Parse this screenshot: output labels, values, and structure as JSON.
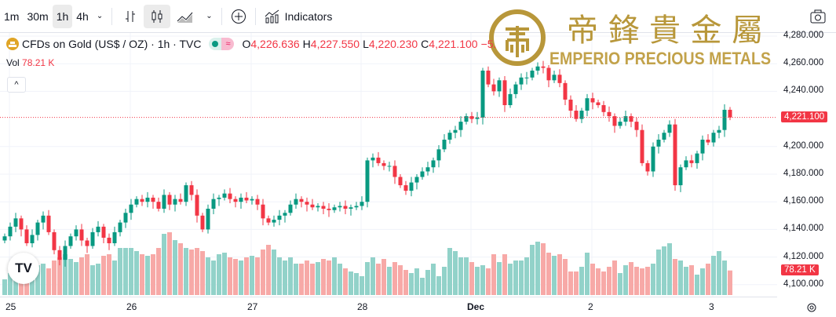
{
  "toolbar": {
    "intervals": [
      "1m",
      "30m",
      "1h",
      "4h"
    ],
    "active_interval": "1h",
    "indicators_label": "Indicators"
  },
  "legend": {
    "symbol": "CFDs on Gold (US$ / OZ) · 1h · TVC",
    "open_label": "O",
    "open": "4,226.636",
    "high_label": "H",
    "high": "4,227.550",
    "low_label": "L",
    "low": "4,220.230",
    "close_label": "C",
    "close": "4,221.100",
    "change": "−5.",
    "vol_label": "Vol",
    "vol": "78.21 K"
  },
  "logo": {
    "chinese": "帝鋒貴金屬",
    "english": "EMPERIO PRECIOUS METALS"
  },
  "colors": {
    "up": "#089981",
    "down": "#f23645",
    "vol_up": "#92d2c9",
    "vol_down": "#f7a9a7",
    "gold": "#b8973a"
  },
  "chart_data": {
    "type": "candlestick",
    "title": "CFDs on Gold (US$ / OZ) · 1h · TVC",
    "ylim": [
      4096,
      4287
    ],
    "y_ticks": [
      "4,280.000",
      "4,260.000",
      "4,240.000",
      "4,200.000",
      "4,180.000",
      "4,160.000",
      "4,140.000",
      "4,120.000",
      "4,100.000"
    ],
    "y_tick_values": [
      4280,
      4260,
      4240,
      4200,
      4180,
      4160,
      4140,
      4120,
      4100
    ],
    "x_ticks": [
      {
        "label": "25",
        "index": 1
      },
      {
        "label": "26",
        "index": 23
      },
      {
        "label": "27",
        "index": 45
      },
      {
        "label": "28",
        "index": 65
      },
      {
        "label": "Dec",
        "index": 85
      },
      {
        "label": "2",
        "index": 107
      },
      {
        "label": "3",
        "index": 129
      }
    ],
    "last_price": "4,221.100",
    "last_price_value": 4221.1,
    "last_volume": "78.21 K",
    "last_volume_value": 78.21,
    "first_open": 4132,
    "closes": [
      4135,
      4142,
      4148,
      4140,
      4130,
      4136,
      4145,
      4150,
      4138,
      4125,
      4118,
      4128,
      4135,
      4140,
      4132,
      4128,
      4138,
      4142,
      4134,
      4130,
      4138,
      4145,
      4152,
      4158,
      4162,
      4160,
      4163,
      4160,
      4155,
      4165,
      4158,
      4162,
      4160,
      4172,
      4165,
      4150,
      4140,
      4155,
      4162,
      4163,
      4166,
      4162,
      4160,
      4163,
      4161,
      4162,
      4158,
      4148,
      4145,
      4147,
      4150,
      4152,
      4158,
      4162,
      4160,
      4158,
      4156,
      4157,
      4155,
      4154,
      4156,
      4157,
      4155,
      4156,
      4157,
      4160,
      4190,
      4192,
      4188,
      4186,
      4186,
      4178,
      4172,
      4168,
      4174,
      4178,
      4182,
      4185,
      4190,
      4198,
      4205,
      4210,
      4212,
      4218,
      4222,
      4220,
      4221,
      4255,
      4245,
      4240,
      4248,
      4230,
      4238,
      4245,
      4250,
      4250,
      4255,
      4258,
      4257,
      4248,
      4252,
      4246,
      4234,
      4226,
      4220,
      4226,
      4235,
      4232,
      4230,
      4225,
      4222,
      4215,
      4218,
      4222,
      4218,
      4212,
      4188,
      4182,
      4200,
      4205,
      4210,
      4216,
      4172,
      4185,
      4190,
      4188,
      4195,
      4205,
      4203,
      4210,
      4212,
      4226.636,
      4221.1
    ],
    "volumes_k": [
      50,
      70,
      90,
      80,
      110,
      60,
      95,
      100,
      85,
      110,
      120,
      130,
      115,
      105,
      120,
      130,
      95,
      100,
      125,
      130,
      110,
      150,
      150,
      150,
      140,
      130,
      125,
      130,
      150,
      195,
      200,
      175,
      165,
      150,
      145,
      150,
      140,
      120,
      110,
      130,
      135,
      120,
      115,
      110,
      120,
      125,
      120,
      145,
      160,
      145,
      120,
      110,
      120,
      100,
      100,
      110,
      100,
      105,
      115,
      110,
      120,
      100,
      85,
      75,
      70,
      60,
      105,
      120,
      100,
      115,
      90,
      105,
      95,
      80,
      70,
      85,
      55,
      80,
      100,
      60,
      90,
      150,
      140,
      120,
      120,
      105,
      90,
      95,
      85,
      130,
      105,
      130,
      100,
      110,
      110,
      120,
      160,
      170,
      165,
      135,
      125,
      130,
      115,
      75,
      75,
      90,
      135,
      100,
      85,
      75,
      90,
      110,
      70,
      95,
      105,
      90,
      85,
      90,
      100,
      145,
      155,
      165,
      115,
      110,
      90,
      95,
      65,
      85,
      100,
      125,
      140,
      110,
      78.21
    ]
  }
}
